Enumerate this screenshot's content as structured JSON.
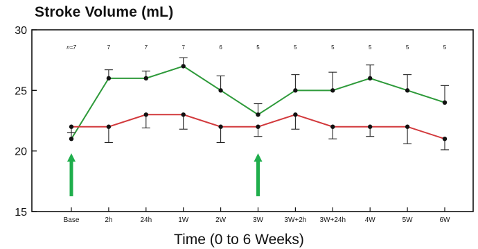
{
  "chart_data": {
    "type": "line",
    "title": "Stroke Volume (mL)",
    "xlabel": "Time (0 to 6 Weeks)",
    "ylabel": "",
    "categories": [
      "Base",
      "2h",
      "24h",
      "1W",
      "2W",
      "3W",
      "3W+2h",
      "3W+24h",
      "4W",
      "5W",
      "6W"
    ],
    "n_labels": [
      "n=7",
      "7",
      "7",
      "7",
      "6",
      "5",
      "5",
      "5",
      "5",
      "5",
      "5"
    ],
    "ylim": [
      15,
      30
    ],
    "yticks": [
      15,
      20,
      25,
      30
    ],
    "grid": false,
    "series": [
      {
        "color": "#2e9a3a",
        "values": [
          21,
          26,
          26,
          27,
          25,
          23,
          25,
          25,
          26,
          25,
          24
        ],
        "err_upper": [
          0.5,
          0.7,
          0.6,
          0.7,
          1.2,
          0.9,
          1.3,
          1.5,
          1.1,
          1.3,
          1.4
        ],
        "err_lower": [
          0,
          0,
          0,
          0,
          0,
          0,
          0,
          0,
          0,
          0,
          0
        ]
      },
      {
        "color": "#d2393c",
        "values": [
          22,
          22,
          23,
          23,
          22,
          22,
          23,
          22,
          22,
          22,
          21
        ],
        "err_upper": [
          0,
          0,
          0,
          0,
          0,
          0,
          0,
          0,
          0,
          0,
          0
        ],
        "err_lower": [
          0.5,
          1.3,
          1.1,
          1.2,
          1.3,
          0.8,
          1.2,
          1.0,
          0.8,
          1.4,
          0.9
        ]
      }
    ],
    "arrows": [
      {
        "category": "Base",
        "color": "#1fae4c"
      },
      {
        "category": "3W",
        "color": "#1fae4c"
      }
    ]
  }
}
